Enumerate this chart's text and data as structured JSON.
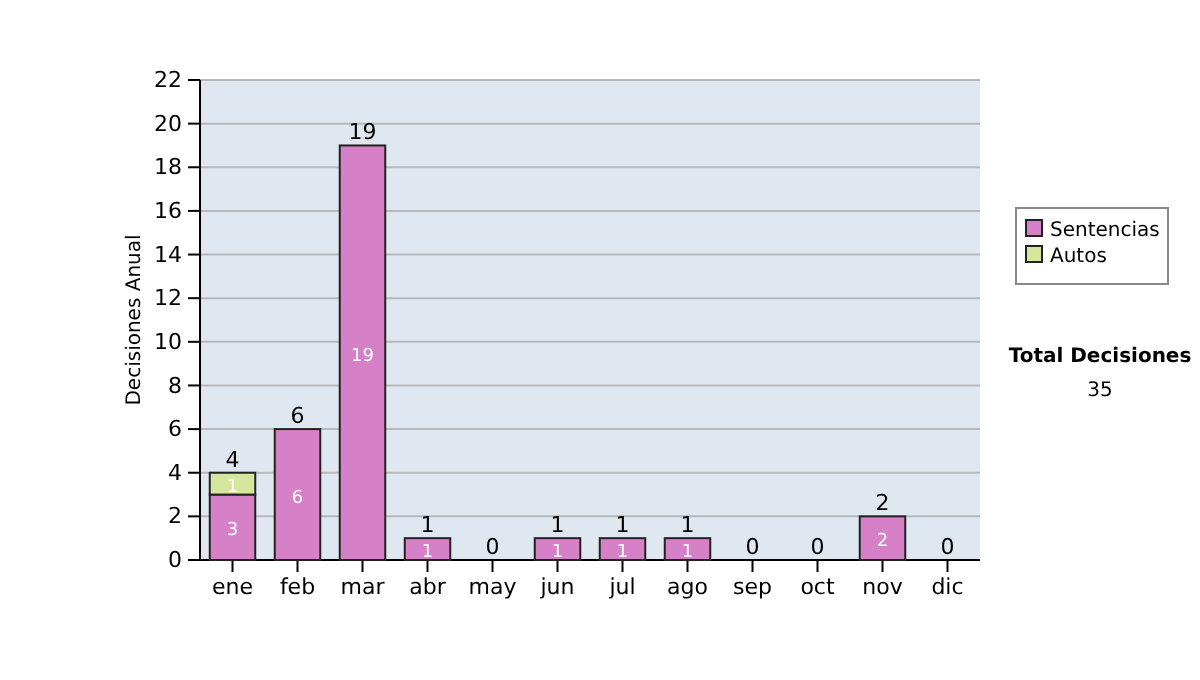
{
  "chart_data": {
    "type": "bar",
    "ylabel": "Decisiones Anual",
    "stacked": true,
    "categories": [
      "ene",
      "feb",
      "mar",
      "abr",
      "may",
      "jun",
      "jul",
      "ago",
      "sep",
      "oct",
      "nov",
      "dic"
    ],
    "series": [
      {
        "name": "Sentencias",
        "color": "#d680c8",
        "values": [
          3,
          6,
          19,
          1,
          0,
          1,
          1,
          1,
          0,
          0,
          2,
          0
        ],
        "value_labels": [
          "3",
          "6",
          "19",
          "1",
          null,
          "1",
          "1",
          "1",
          null,
          null,
          "2",
          null
        ]
      },
      {
        "name": "Autos",
        "color": "#d5e79c",
        "values": [
          1,
          0,
          0,
          0,
          0,
          0,
          0,
          0,
          0,
          0,
          0,
          0
        ],
        "value_labels": [
          "1",
          null,
          null,
          null,
          null,
          null,
          null,
          null,
          null,
          null,
          null,
          null
        ]
      }
    ],
    "totals": [
      "4",
      "6",
      "19",
      "1",
      "0",
      "1",
      "1",
      "1",
      "0",
      "0",
      "2",
      "0"
    ],
    "ylim": [
      0,
      22
    ],
    "yticks": [
      0,
      2,
      4,
      6,
      8,
      10,
      12,
      14,
      16,
      18,
      20,
      22
    ],
    "grid": "y",
    "legend": "right",
    "annotations": [
      "Total Decisiones",
      "35"
    ]
  }
}
